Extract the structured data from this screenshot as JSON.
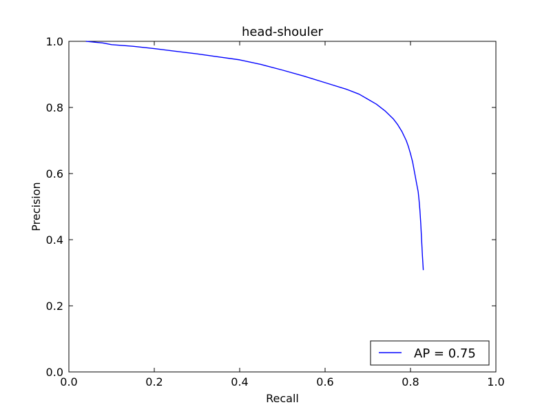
{
  "chart_data": {
    "type": "line",
    "title": "head-shouler",
    "xlabel": "Recall",
    "ylabel": "Precision",
    "xlim": [
      0.0,
      1.0
    ],
    "ylim": [
      0.0,
      1.0
    ],
    "x_ticks": [
      "0.0",
      "0.2",
      "0.4",
      "0.6",
      "0.8",
      "1.0"
    ],
    "y_ticks": [
      "0.0",
      "0.2",
      "0.4",
      "0.6",
      "0.8",
      "1.0"
    ],
    "grid": false,
    "legend_position": "lower-right",
    "series": [
      {
        "name": "AP = 0.75",
        "color": "#0000ff",
        "x": [
          0.04,
          0.08,
          0.1,
          0.15,
          0.2,
          0.25,
          0.3,
          0.35,
          0.4,
          0.45,
          0.5,
          0.55,
          0.6,
          0.65,
          0.68,
          0.7,
          0.72,
          0.74,
          0.76,
          0.77,
          0.78,
          0.79,
          0.795,
          0.8,
          0.805,
          0.81,
          0.815,
          0.818,
          0.82,
          0.822,
          0.824,
          0.826,
          0.828,
          0.83
        ],
        "y": [
          1.0,
          0.995,
          0.99,
          0.985,
          0.978,
          0.97,
          0.962,
          0.953,
          0.944,
          0.93,
          0.913,
          0.895,
          0.875,
          0.855,
          0.84,
          0.825,
          0.81,
          0.79,
          0.765,
          0.748,
          0.727,
          0.7,
          0.682,
          0.66,
          0.635,
          0.6,
          0.565,
          0.545,
          0.52,
          0.49,
          0.45,
          0.4,
          0.35,
          0.308
        ]
      }
    ]
  }
}
